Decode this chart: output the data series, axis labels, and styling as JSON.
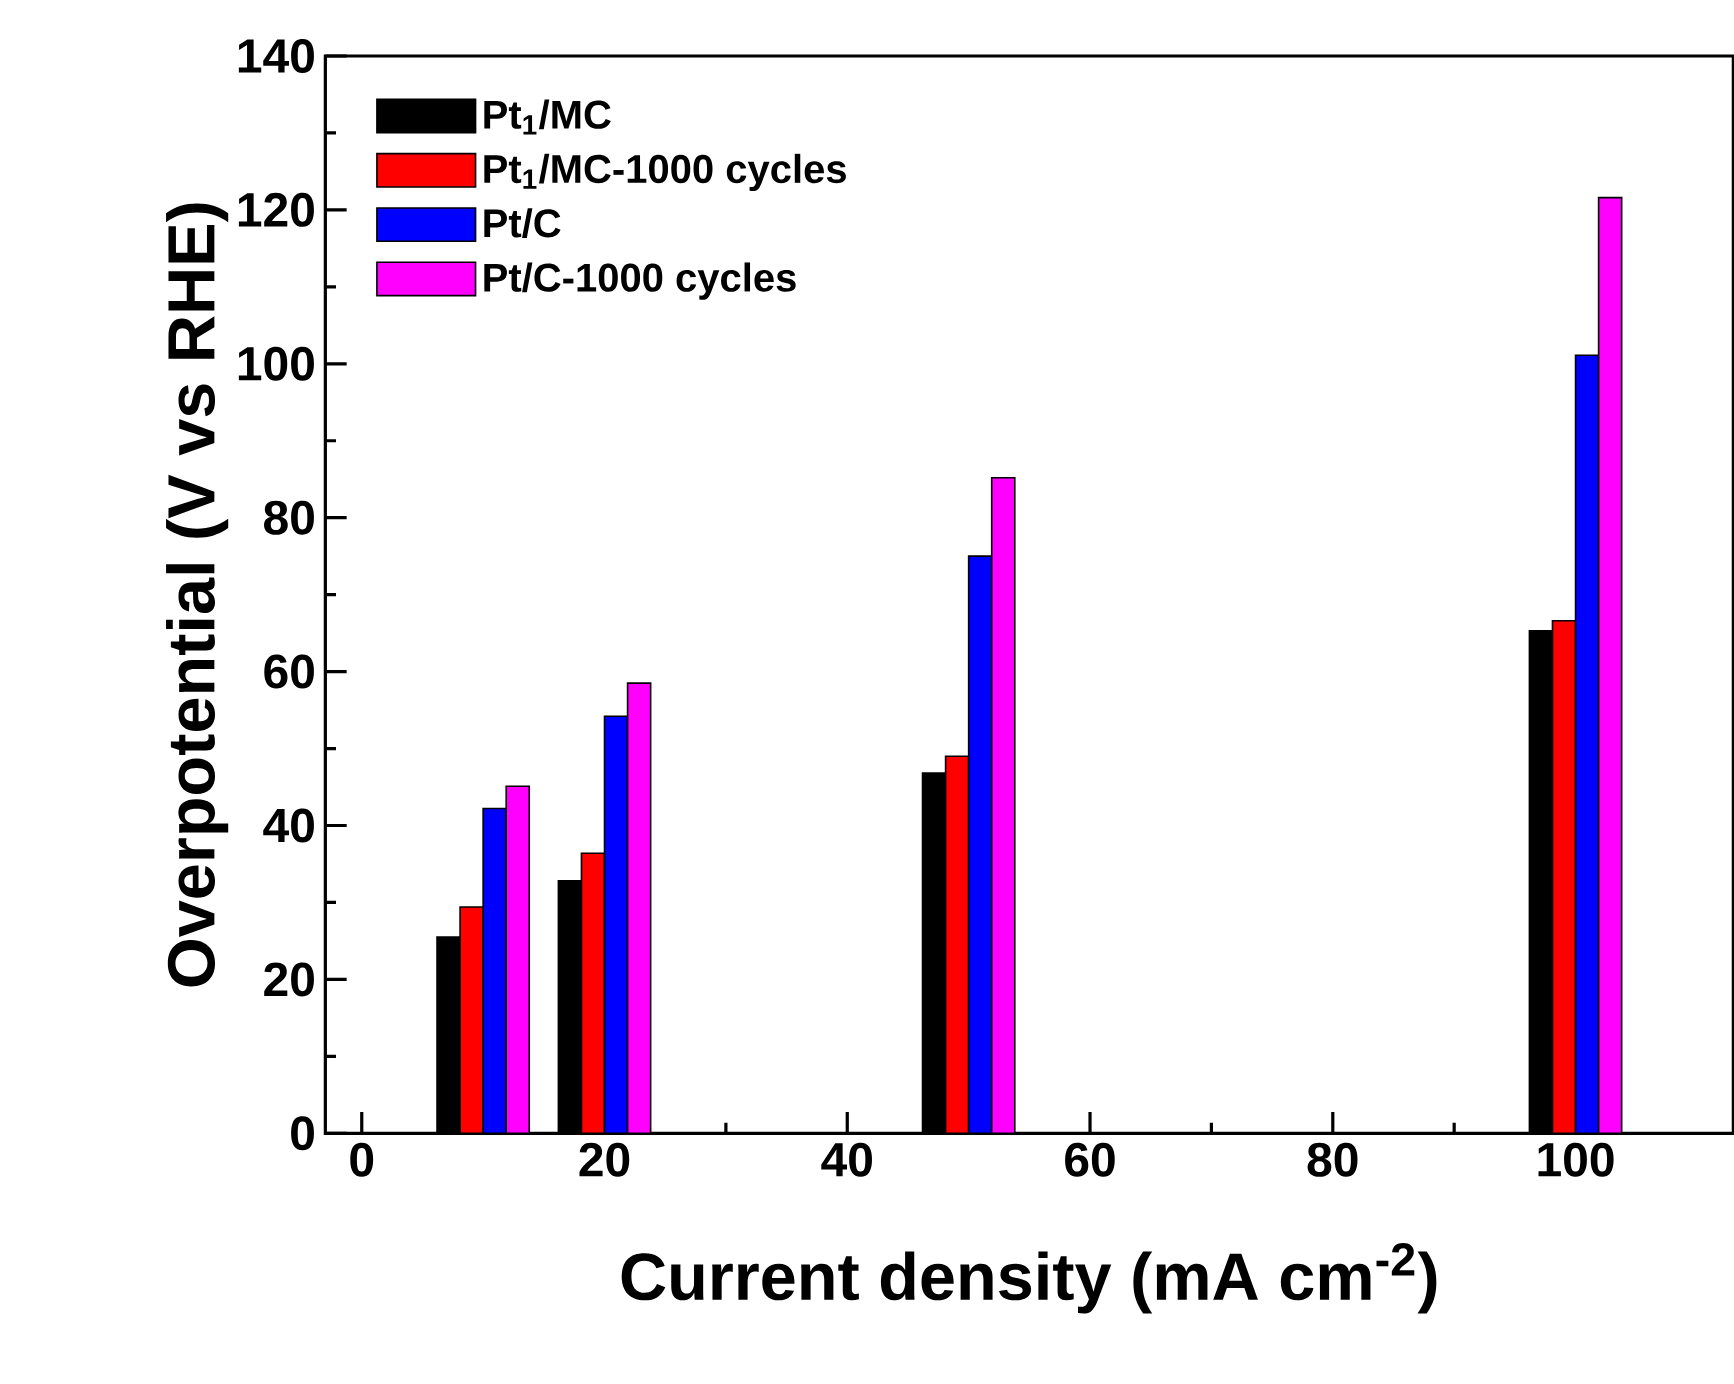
{
  "chart_data": {
    "type": "bar",
    "xlabel": "Current density (mA cm$^{-2}$)",
    "ylabel": "Overpotential (V vs RHE)",
    "x": [
      10,
      20,
      50,
      100
    ],
    "series": [
      {
        "name": "Pt$_{1}$/MC",
        "color": "#000000",
        "values": [
          25.5,
          32.8,
          46.8,
          65.3
        ]
      },
      {
        "name": "Pt$_{1}$/MC-1000 cycles",
        "color": "#ff0000",
        "values": [
          29.4,
          36.4,
          49.0,
          66.6
        ]
      },
      {
        "name": "Pt/C",
        "color": "#0000ff",
        "values": [
          42.2,
          54.2,
          75.0,
          101.1
        ]
      },
      {
        "name": "Pt/C-1000 cycles",
        "color": "#ff00ff",
        "values": [
          45.1,
          58.5,
          85.2,
          121.6
        ]
      }
    ],
    "xlim": [
      -3,
      113
    ],
    "ylim": [
      0,
      140
    ],
    "xticks": [
      0,
      20,
      40,
      60,
      80,
      100
    ],
    "yticks": [
      0,
      20,
      40,
      60,
      80,
      100,
      120,
      140
    ],
    "legend": "top left",
    "grid": false
  }
}
